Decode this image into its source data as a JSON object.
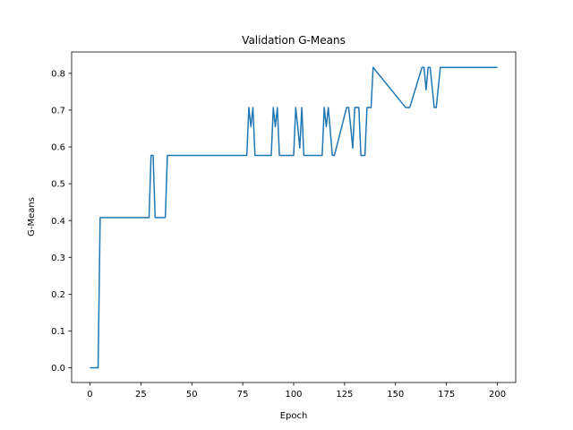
{
  "chart_data": {
    "type": "line",
    "title": "Validation G-Means",
    "xlabel": "Epoch",
    "ylabel": "G-Means",
    "xlim": [
      -9,
      209
    ],
    "ylim": [
      -0.04,
      0.858
    ],
    "xticks": [
      0,
      25,
      50,
      75,
      100,
      125,
      150,
      175,
      200
    ],
    "yticks": [
      0.0,
      0.1,
      0.2,
      0.3,
      0.4,
      0.5,
      0.6,
      0.7,
      0.8
    ],
    "ytick_labels": [
      "0.0",
      "0.1",
      "0.2",
      "0.3",
      "0.4",
      "0.5",
      "0.6",
      "0.7",
      "0.8"
    ],
    "grid": false,
    "color": "#1f77b4",
    "series": [
      {
        "x": [
          0,
          4,
          5,
          29,
          30,
          31,
          32,
          37,
          38,
          77,
          78,
          79,
          80,
          81,
          89,
          90,
          91,
          92,
          93,
          100,
          101,
          102,
          103,
          104,
          105,
          106,
          114,
          115,
          116,
          117,
          119,
          120,
          126,
          127,
          128,
          129,
          130,
          132,
          133,
          135,
          136,
          138,
          139,
          155,
          156,
          157,
          163,
          164,
          165,
          166,
          167,
          169,
          170,
          172,
          173,
          200
        ],
        "y": [
          0.0,
          0.0,
          0.408,
          0.408,
          0.577,
          0.577,
          0.408,
          0.408,
          0.577,
          0.577,
          0.707,
          0.655,
          0.707,
          0.577,
          0.577,
          0.707,
          0.655,
          0.707,
          0.577,
          0.577,
          0.707,
          0.655,
          0.597,
          0.707,
          0.577,
          0.577,
          0.577,
          0.707,
          0.655,
          0.707,
          0.577,
          0.577,
          0.707,
          0.707,
          0.655,
          0.597,
          0.707,
          0.707,
          0.577,
          0.577,
          0.707,
          0.707,
          0.816,
          0.707,
          0.707,
          0.707,
          0.816,
          0.816,
          0.755,
          0.816,
          0.816,
          0.707,
          0.707,
          0.816,
          0.816,
          0.816
        ]
      }
    ]
  }
}
